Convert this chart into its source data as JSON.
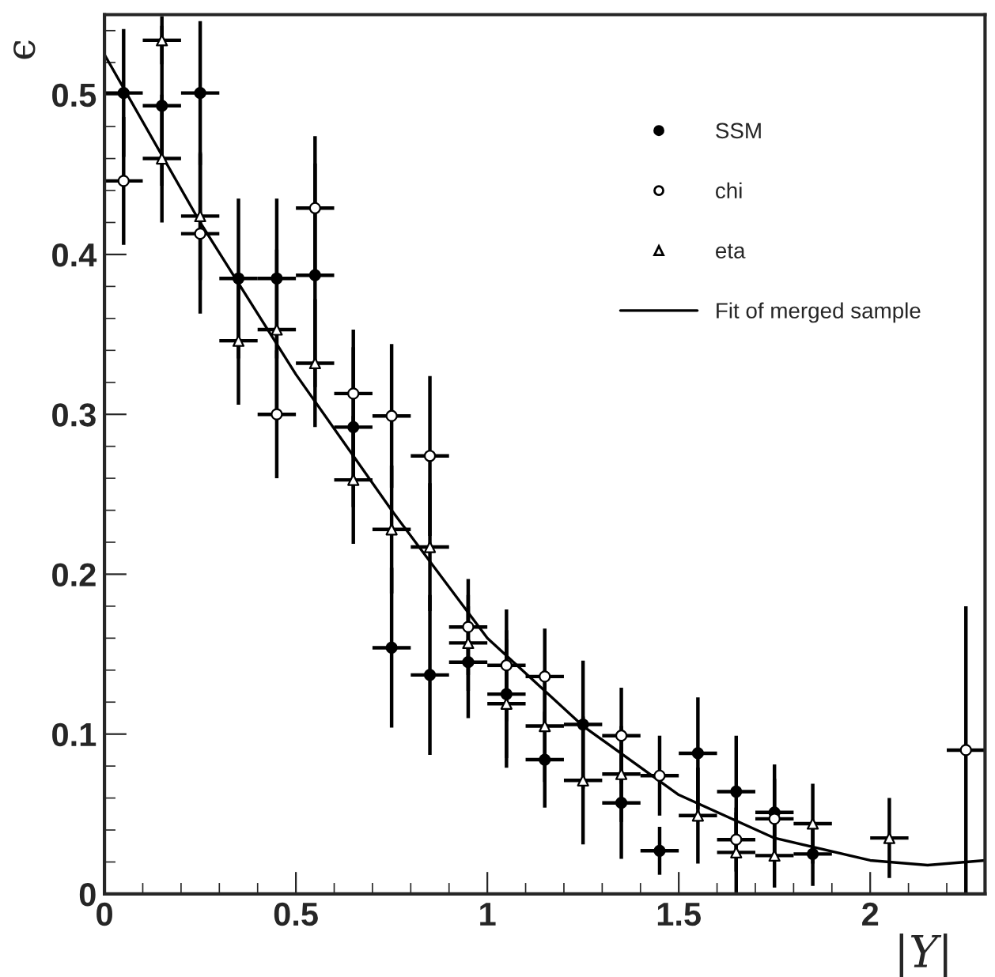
{
  "chart_data": {
    "type": "scatter",
    "xlabel": "|Y|",
    "ylabel": "ϵ",
    "xlim": [
      0,
      2.3
    ],
    "ylim": [
      0,
      0.55
    ],
    "xticks": [
      0,
      0.5,
      1,
      1.5,
      2
    ],
    "yticks": [
      0,
      0.1,
      0.2,
      0.3,
      0.4,
      0.5
    ],
    "grid": false,
    "legend": "top right",
    "series": [
      {
        "name": "SSM",
        "color": "#000000",
        "marker": "circle",
        "x": [
          0.05,
          0.15,
          0.25,
          0.35,
          0.45,
          0.55,
          0.65,
          0.75,
          0.85,
          0.95,
          1.05,
          1.15,
          1.25,
          1.35,
          1.45,
          1.55,
          1.65,
          1.75,
          1.85
        ],
        "values": [
          0.501,
          0.493,
          0.501,
          0.385,
          0.385,
          0.387,
          0.292,
          0.154,
          0.137,
          0.145,
          0.125,
          0.084,
          0.106,
          0.057,
          0.027,
          0.088,
          0.064,
          0.051,
          0.025
        ],
        "errors": [
          0.04,
          0.05,
          0.045,
          0.05,
          0.05,
          0.07,
          0.05,
          0.05,
          0.05,
          0.035,
          0.04,
          0.03,
          0.04,
          0.035,
          0.015,
          0.035,
          0.035,
          0.03,
          0.02
        ],
        "xerrors": [
          0.05,
          0.05,
          0.05,
          0.05,
          0.05,
          0.05,
          0.05,
          0.05,
          0.05,
          0.05,
          0.05,
          0.05,
          0.05,
          0.05,
          0.05,
          0.05,
          0.05,
          0.05,
          0.05
        ]
      },
      {
        "name": "chi",
        "color": "#000000",
        "marker": "circle_open",
        "x": [
          0.05,
          0.25,
          0.45,
          0.55,
          0.65,
          0.75,
          0.85,
          0.95,
          1.05,
          1.15,
          1.35,
          1.45,
          1.65,
          1.75,
          2.25
        ],
        "values": [
          0.446,
          0.413,
          0.3,
          0.429,
          0.313,
          0.299,
          0.274,
          0.167,
          0.143,
          0.136,
          0.099,
          0.074,
          0.034,
          0.047,
          0.09
        ],
        "errors": [
          0.04,
          0.05,
          0.04,
          0.045,
          0.04,
          0.045,
          0.05,
          0.03,
          0.035,
          0.03,
          0.03,
          0.025,
          0.02,
          0.025,
          0.09
        ],
        "xerrors": [
          0.05,
          0.05,
          0.05,
          0.05,
          0.05,
          0.05,
          0.05,
          0.05,
          0.05,
          0.05,
          0.05,
          0.05,
          0.05,
          0.05,
          0.05
        ]
      },
      {
        "name": "eta",
        "color": "#000000",
        "marker": "triangle",
        "x": [
          0.15,
          0.15,
          0.25,
          0.35,
          0.45,
          0.55,
          0.65,
          0.75,
          0.85,
          0.95,
          1.05,
          1.15,
          1.25,
          1.35,
          1.55,
          1.65,
          1.75,
          1.85,
          2.05
        ],
        "values": [
          0.534,
          0.46,
          0.424,
          0.346,
          0.353,
          0.332,
          0.259,
          0.228,
          0.217,
          0.157,
          0.119,
          0.105,
          0.071,
          0.075,
          0.049,
          0.026,
          0.024,
          0.044,
          0.035
        ],
        "errors": [
          0.015,
          0.04,
          0.04,
          0.04,
          0.05,
          0.04,
          0.04,
          0.04,
          0.04,
          0.03,
          0.04,
          0.035,
          0.04,
          0.03,
          0.03,
          0.025,
          0.02,
          0.025,
          0.025
        ],
        "xerrors": [
          0.05,
          0.05,
          0.05,
          0.05,
          0.05,
          0.05,
          0.05,
          0.05,
          0.05,
          0.05,
          0.05,
          0.05,
          0.05,
          0.05,
          0.05,
          0.05,
          0.05,
          0.05,
          0.05
        ]
      },
      {
        "name": "Fit of merged sample",
        "type": "line",
        "color": "#000000",
        "line_style": "solid",
        "marker": "none",
        "x": [
          0,
          0.25,
          0.5,
          0.75,
          1.0,
          1.25,
          1.5,
          1.75,
          2.0,
          2.15,
          2.3
        ],
        "values": [
          0.525,
          0.42,
          0.325,
          0.24,
          0.16,
          0.105,
          0.062,
          0.035,
          0.021,
          0.018,
          0.021
        ]
      }
    ]
  }
}
